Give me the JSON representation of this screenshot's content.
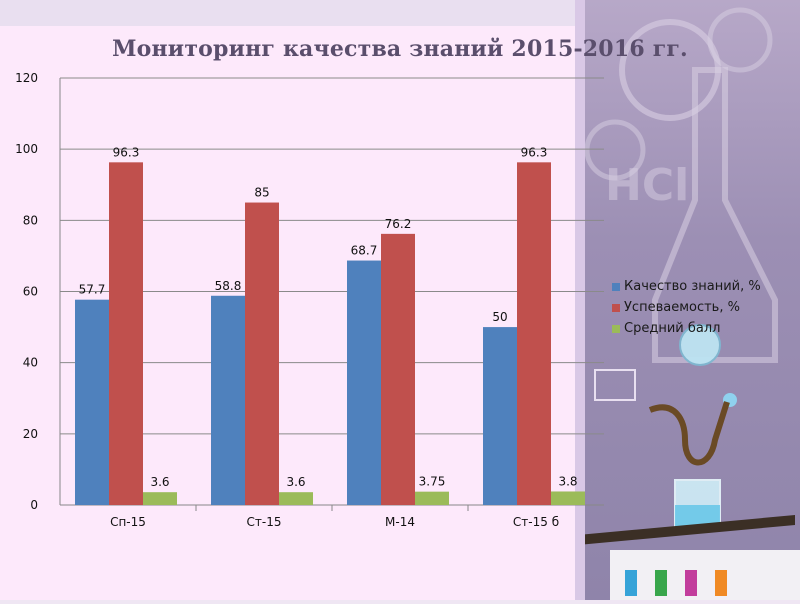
{
  "chart_data": {
    "type": "bar",
    "title": "Мониторинг качества знаний 2015-2016 гг.",
    "categories": [
      "Сп-15",
      "Ст-15",
      "М-14",
      "Ст-15 б"
    ],
    "series": [
      {
        "name": "Качество знаний, %",
        "values": [
          57.7,
          58.8,
          68.7,
          50
        ],
        "labels": [
          "57.7",
          "58.8",
          "68.7",
          "50"
        ],
        "color": "#4f81bd"
      },
      {
        "name": "Успеваемость, %",
        "values": [
          96.3,
          85,
          76.2,
          96.3
        ],
        "labels": [
          "96.3",
          "85",
          "76.2",
          "96.3"
        ],
        "color": "#c0504d"
      },
      {
        "name": "Средний балл",
        "values": [
          3.6,
          3.6,
          3.75,
          3.8
        ],
        "labels": [
          "3.6",
          "3.6",
          "3.75",
          "3.8"
        ],
        "color": "#9bbb59"
      }
    ],
    "ylim": [
      0,
      120
    ],
    "yticks": [
      "0",
      "20",
      "40",
      "60",
      "80",
      "100",
      "120"
    ],
    "grid": true,
    "legend_position": "right"
  }
}
